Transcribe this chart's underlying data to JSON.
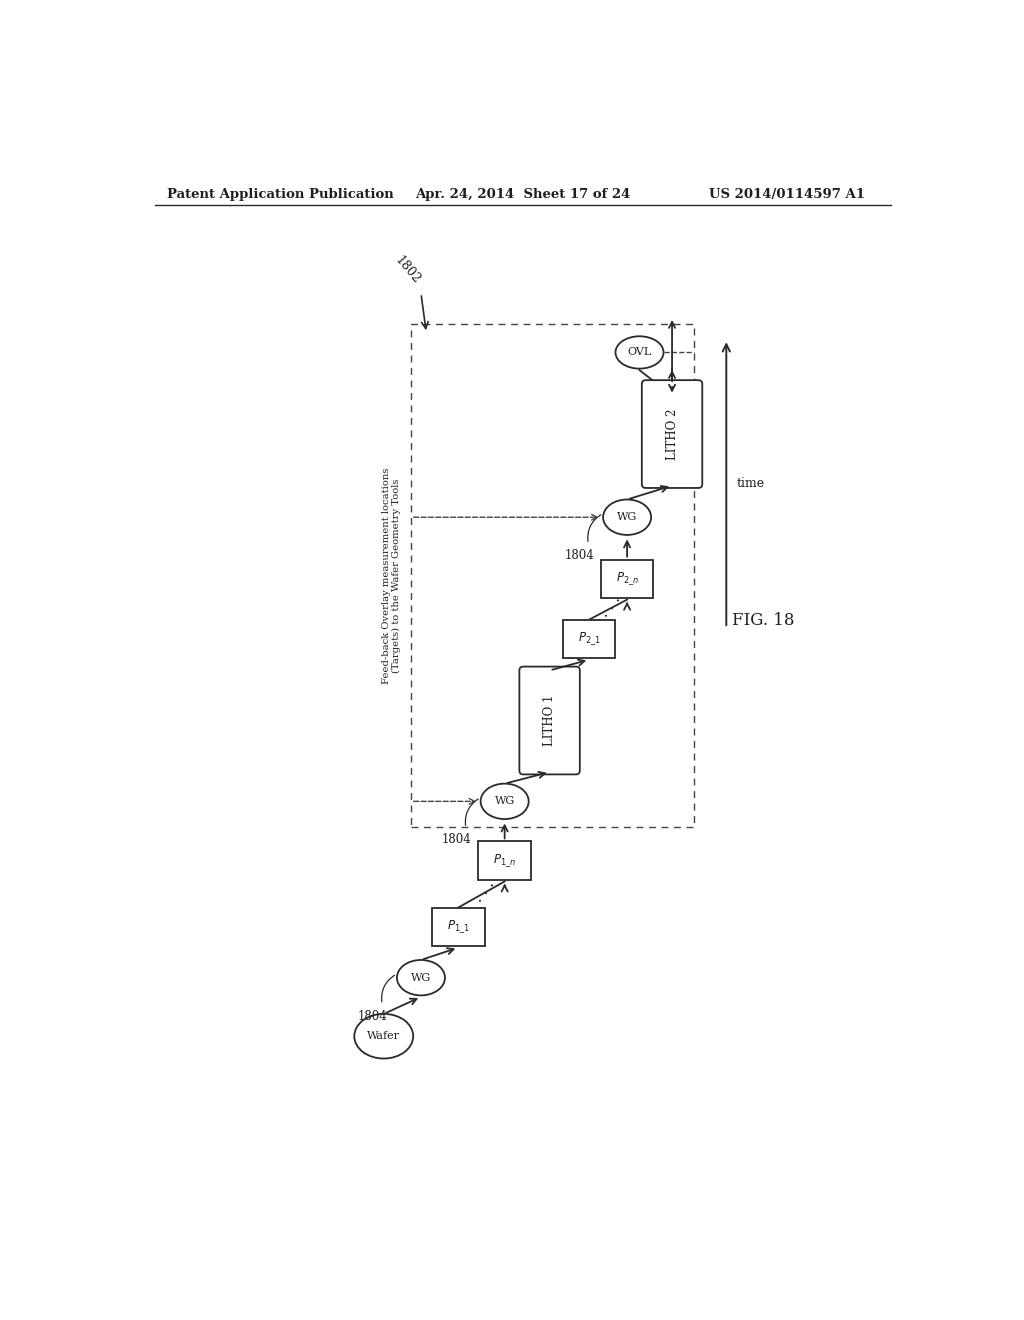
{
  "header_left": "Patent Application Publication",
  "header_mid": "Apr. 24, 2014  Sheet 17 of 24",
  "header_right": "US 2014/0114597 A1",
  "fig_label": "FIG. 18",
  "label_1802": "1802",
  "label_1804a": "1804",
  "label_1804b": "1804",
  "label_1804c": "1804",
  "bg_color": "#ffffff",
  "line_color": "#2a2a2a",
  "text_color": "#1e1e1e",
  "dashed_color": "#444444",
  "feedback_line1": "Feed-back Overlay measurement locations",
  "feedback_line2": "(Targets) to the Wafer Geometry Tools",
  "time_label": "time"
}
